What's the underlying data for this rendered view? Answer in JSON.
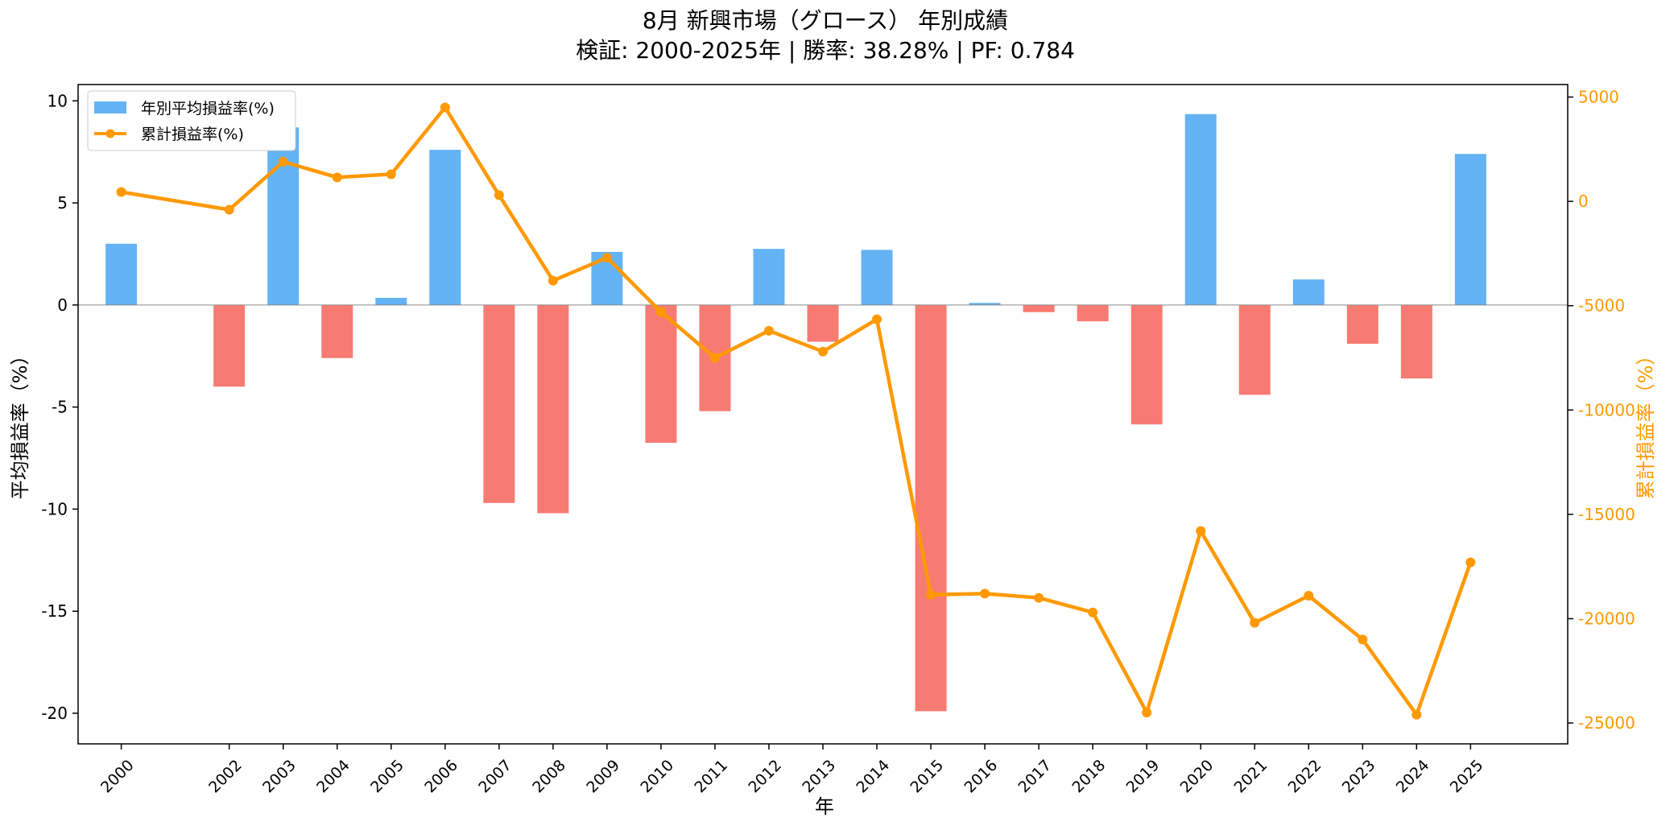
{
  "chart_data": {
    "type": "bar",
    "title_line1": "8月 新興市場（グロース） 年別成績",
    "title_line2": "検証: 2000-2025年 | 勝率: 38.28% | PF: 0.784",
    "xlabel": "年",
    "ylabel_left": "平均損益率（%）",
    "ylabel_right": "累計損益率（%）",
    "ylim_left": [
      -21.5,
      10.8
    ],
    "ylim_right": [
      -26000,
      5600
    ],
    "yticks_left": [
      10,
      5,
      0,
      -5,
      -10,
      -15,
      -20
    ],
    "yticks_right": [
      5000,
      0,
      -5000,
      -10000,
      -15000,
      -20000,
      -25000
    ],
    "x": [
      2000,
      2002,
      2003,
      2004,
      2005,
      2006,
      2007,
      2008,
      2009,
      2010,
      2011,
      2012,
      2013,
      2014,
      2015,
      2016,
      2017,
      2018,
      2019,
      2020,
      2021,
      2022,
      2023,
      2024,
      2025
    ],
    "series": [
      {
        "name": "年別平均損益率(%)",
        "kind": "bar",
        "axis": "left",
        "values": [
          3.0,
          -4.0,
          8.7,
          -2.6,
          0.35,
          7.6,
          -9.7,
          -10.2,
          2.6,
          -6.75,
          -5.2,
          2.75,
          -1.8,
          2.7,
          -19.9,
          0.1,
          -0.35,
          -0.8,
          -5.85,
          9.35,
          -4.4,
          1.25,
          -1.9,
          -3.6,
          7.4
        ]
      },
      {
        "name": "累計損益率(%)",
        "kind": "line",
        "axis": "right",
        "values": [
          450,
          -400,
          1900,
          1150,
          1300,
          4500,
          300,
          -3800,
          -2700,
          -5300,
          -7500,
          -6200,
          -7200,
          -5650,
          -18850,
          -18800,
          -19000,
          -19700,
          -24500,
          -15800,
          -20200,
          -18900,
          -21000,
          -24600,
          -17300
        ]
      }
    ],
    "colors": {
      "bar_positive": "#63b3f5",
      "bar_negative": "#f77b72",
      "line": "#ff9900",
      "zero_line": "#888888",
      "axis": "#000000"
    },
    "legend": {
      "placement": "top-left"
    },
    "grid": false
  }
}
